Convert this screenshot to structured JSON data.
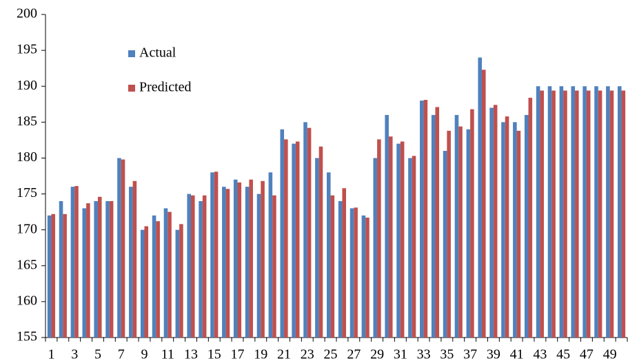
{
  "chart_data": {
    "type": "bar",
    "categories": [
      "1",
      null,
      "3",
      null,
      "5",
      null,
      "7",
      null,
      "9",
      null,
      "11",
      null,
      "13",
      null,
      "15",
      null,
      "17",
      null,
      "19",
      null,
      "21",
      null,
      "23",
      null,
      "25",
      null,
      "27",
      null,
      "29",
      null,
      "31",
      null,
      "33",
      null,
      "35",
      null,
      "37",
      null,
      "39",
      null,
      "41",
      null,
      "43",
      null,
      "45",
      null,
      "47",
      null,
      "49",
      null
    ],
    "series": [
      {
        "name": "Actual",
        "color": "#4f81bd",
        "values": [
          172,
          174,
          176,
          173,
          174,
          174,
          180,
          176,
          170,
          172,
          173,
          170,
          175,
          174,
          178,
          176,
          177,
          176,
          175,
          178,
          184,
          182,
          185,
          180,
          178,
          174,
          173,
          172,
          180,
          186,
          182,
          180,
          188,
          186,
          181,
          186,
          184,
          194,
          187,
          185,
          185,
          186,
          190,
          190,
          190,
          190,
          190,
          190,
          190,
          190
        ]
      },
      {
        "name": "Predicted",
        "color": "#c0504d",
        "values": [
          172.2,
          172.2,
          176.1,
          173.7,
          174.6,
          174,
          179.8,
          176.8,
          170.5,
          171.2,
          172.5,
          170.8,
          174.8,
          174.8,
          178.1,
          175.7,
          176.6,
          177,
          176.8,
          174.8,
          182.6,
          182.3,
          184.2,
          181.6,
          174.8,
          175.8,
          173.1,
          171.7,
          182.6,
          183,
          182.3,
          180.3,
          188.1,
          187.1,
          183.8,
          184.4,
          186.8,
          192.3,
          187.4,
          185.8,
          183.8,
          188.4,
          189.4,
          189.4,
          189.4,
          189.4,
          189.4,
          189.4,
          189.4,
          189.4
        ]
      }
    ],
    "ylim": [
      155,
      200
    ],
    "yticks": [
      155,
      160,
      165,
      170,
      175,
      180,
      185,
      190,
      195,
      200
    ]
  }
}
